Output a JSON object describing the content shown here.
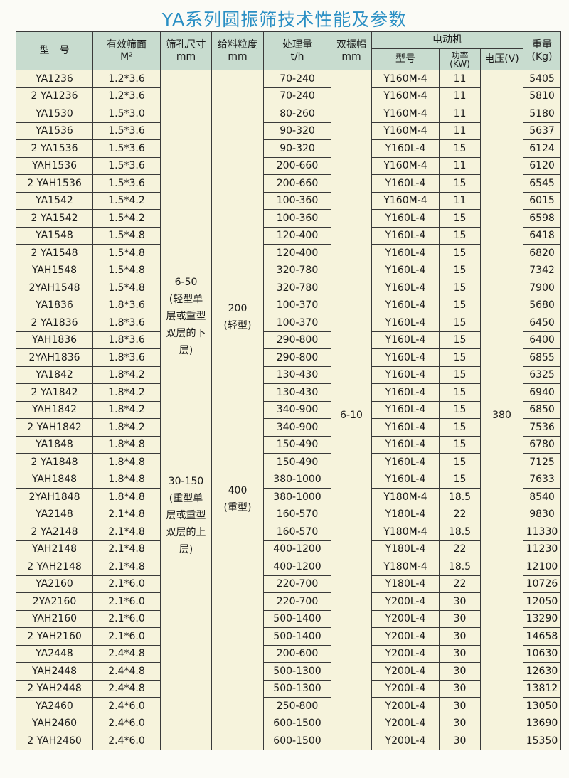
{
  "title": "YA系列圆振筛技术性能及参数",
  "colors": {
    "title": "#2a8fc4",
    "header_bg": "#c8dccf",
    "cell_bg": "#f6f3dc"
  },
  "headers": {
    "model": "型　号",
    "area": "有效筛面",
    "area_unit": "M²",
    "hole": "筛孔尺寸",
    "hole_unit": "mm",
    "feed": "给料粒度",
    "feed_unit": "mm",
    "capacity": "处理量",
    "capacity_unit": "t/h",
    "amplitude": "双振幅",
    "amplitude_unit": "mm",
    "motor": "电动机",
    "motor_model": "型号",
    "power": "功率",
    "power_unit": "(KW)",
    "voltage": "电压(V)",
    "weight": "重量",
    "weight_unit": "(Kg)"
  },
  "merged": {
    "hole_light": [
      "6-50",
      "(轻型单",
      "层或重型",
      "双层的下",
      "层)"
    ],
    "hole_heavy": [
      "30-150",
      "(重型单",
      "层或重型",
      "双层的上",
      "层)"
    ],
    "feed_light": [
      "200",
      "(轻型)"
    ],
    "feed_heavy": [
      "400",
      "(重型)"
    ],
    "amplitude": "6-10",
    "voltage": "380"
  },
  "rows": [
    {
      "model": "YA1236",
      "area": "1.2*3.6",
      "capacity": "70-240",
      "motor": "Y160M-4",
      "power": "11",
      "weight": "5405"
    },
    {
      "model": "2 YA1236",
      "area": "1.2*3.6",
      "capacity": "70-240",
      "motor": "Y160M-4",
      "power": "11",
      "weight": "5810"
    },
    {
      "model": "YA1530",
      "area": "1.5*3.0",
      "capacity": "80-260",
      "motor": "Y160M-4",
      "power": "11",
      "weight": "5180"
    },
    {
      "model": "YA1536",
      "area": "1.5*3.6",
      "capacity": "90-320",
      "motor": "Y160M-4",
      "power": "11",
      "weight": "5637"
    },
    {
      "model": "2 YA1536",
      "area": "1.5*3.6",
      "capacity": "90-320",
      "motor": "Y160L-4",
      "power": "15",
      "weight": "6124"
    },
    {
      "model": "YAH1536",
      "area": "1.5*3.6",
      "capacity": "200-660",
      "motor": "Y160M-4",
      "power": "11",
      "weight": "6120"
    },
    {
      "model": "2 YAH1536",
      "area": "1.5*3.6",
      "capacity": "200-660",
      "motor": "Y160L-4",
      "power": "15",
      "weight": "6545"
    },
    {
      "model": "YA1542",
      "area": "1.5*4.2",
      "capacity": "100-360",
      "motor": "Y160M-4",
      "power": "11",
      "weight": "6015"
    },
    {
      "model": "2 YA1542",
      "area": "1.5*4.2",
      "capacity": "100-360",
      "motor": "Y160L-4",
      "power": "15",
      "weight": "6598"
    },
    {
      "model": "YA1548",
      "area": "1.5*4.8",
      "capacity": "120-400",
      "motor": "Y160L-4",
      "power": "15",
      "weight": "6418"
    },
    {
      "model": "2 YA1548",
      "area": "1.5*4.8",
      "capacity": "120-400",
      "motor": "Y160L-4",
      "power": "15",
      "weight": "6820"
    },
    {
      "model": "YAH1548",
      "area": "1.5*4.8",
      "capacity": "320-780",
      "motor": "Y160L-4",
      "power": "15",
      "weight": "7342"
    },
    {
      "model": "2YAH1548",
      "area": "1.5*4.8",
      "capacity": "320-780",
      "motor": "Y160L-4",
      "power": "15",
      "weight": "7900"
    },
    {
      "model": "YA1836",
      "area": "1.8*3.6",
      "capacity": "100-370",
      "motor": "Y160L-4",
      "power": "15",
      "weight": "5680"
    },
    {
      "model": "2 YA1836",
      "area": "1.8*3.6",
      "capacity": "100-370",
      "motor": "Y160L-4",
      "power": "15",
      "weight": "6450"
    },
    {
      "model": "YAH1836",
      "area": "1.8*3.6",
      "capacity": "290-800",
      "motor": "Y160L-4",
      "power": "15",
      "weight": "6400"
    },
    {
      "model": "2YAH1836",
      "area": "1.8*3.6",
      "capacity": "290-800",
      "motor": "Y160L-4",
      "power": "15",
      "weight": "6855"
    },
    {
      "model": "YA1842",
      "area": "1.8*4.2",
      "capacity": "130-430",
      "motor": "Y160L-4",
      "power": "15",
      "weight": "6325"
    },
    {
      "model": "2 YA1842",
      "area": "1.8*4.2",
      "capacity": "130-430",
      "motor": "Y160L-4",
      "power": "15",
      "weight": "6940"
    },
    {
      "model": "YAH1842",
      "area": "1.8*4.2",
      "capacity": "340-900",
      "motor": "Y160L-4",
      "power": "15",
      "weight": "6850"
    },
    {
      "model": "2 YAH1842",
      "area": "1.8*4.2",
      "capacity": "340-900",
      "motor": "Y160L-4",
      "power": "15",
      "weight": "7536"
    },
    {
      "model": "YA1848",
      "area": "1.8*4.8",
      "capacity": "150-490",
      "motor": "Y160L-4",
      "power": "15",
      "weight": "6780"
    },
    {
      "model": "2 YA1848",
      "area": "1.8*4.8",
      "capacity": "150-490",
      "motor": "Y160L-4",
      "power": "15",
      "weight": "7125"
    },
    {
      "model": "YAH1848",
      "area": "1.8*4.8",
      "capacity": "380-1000",
      "motor": "Y160L-4",
      "power": "15",
      "weight": "7633"
    },
    {
      "model": "2YAH1848",
      "area": "1.8*4.8",
      "capacity": "380-1000",
      "motor": "Y180M-4",
      "power": "18.5",
      "weight": "8540"
    },
    {
      "model": "YA2148",
      "area": "2.1*4.8",
      "capacity": "160-570",
      "motor": "Y180L-4",
      "power": "22",
      "weight": "9830"
    },
    {
      "model": "2 YA2148",
      "area": "2.1*4.8",
      "capacity": "160-570",
      "motor": "Y180M-4",
      "power": "18.5",
      "weight": "11330"
    },
    {
      "model": "YAH2148",
      "area": "2.1*4.8",
      "capacity": "400-1200",
      "motor": "Y180L-4",
      "power": "22",
      "weight": "11230"
    },
    {
      "model": "2 YAH2148",
      "area": "2.1*4.8",
      "capacity": "400-1200",
      "motor": "Y180M-4",
      "power": "18.5",
      "weight": "12100"
    },
    {
      "model": "YA2160",
      "area": "2.1*6.0",
      "capacity": "220-700",
      "motor": "Y180L-4",
      "power": "22",
      "weight": "10726"
    },
    {
      "model": "2YA2160",
      "area": "2.1*6.0",
      "capacity": "220-700",
      "motor": "Y200L-4",
      "power": "30",
      "weight": "12050"
    },
    {
      "model": "YAH2160",
      "area": "2.1*6.0",
      "capacity": "500-1400",
      "motor": "Y200L-4",
      "power": "30",
      "weight": "13290"
    },
    {
      "model": "2 YAH2160",
      "area": "2.1*6.0",
      "capacity": "500-1400",
      "motor": "Y200L-4",
      "power": "30",
      "weight": "14658"
    },
    {
      "model": "YA2448",
      "area": "2.4*4.8",
      "capacity": "200-600",
      "motor": "Y200L-4",
      "power": "30",
      "weight": "10630"
    },
    {
      "model": "YAH2448",
      "area": "2.4*4.8",
      "capacity": "500-1300",
      "motor": "Y200L-4",
      "power": "30",
      "weight": "12630"
    },
    {
      "model": "2 YAH2448",
      "area": "2.4*4.8",
      "capacity": "500-1300",
      "motor": "Y200L-4",
      "power": "30",
      "weight": "13812"
    },
    {
      "model": "YA2460",
      "area": "2.4*6.0",
      "capacity": "250-800",
      "motor": "Y200L-4",
      "power": "30",
      "weight": "13050"
    },
    {
      "model": "YAH2460",
      "area": "2.4*6.0",
      "capacity": "600-1500",
      "motor": "Y200L-4",
      "power": "30",
      "weight": "13690"
    },
    {
      "model": "2 YAH2460",
      "area": "2.4*6.0",
      "capacity": "600-1500",
      "motor": "Y200L-4",
      "power": "30",
      "weight": "15350"
    }
  ]
}
